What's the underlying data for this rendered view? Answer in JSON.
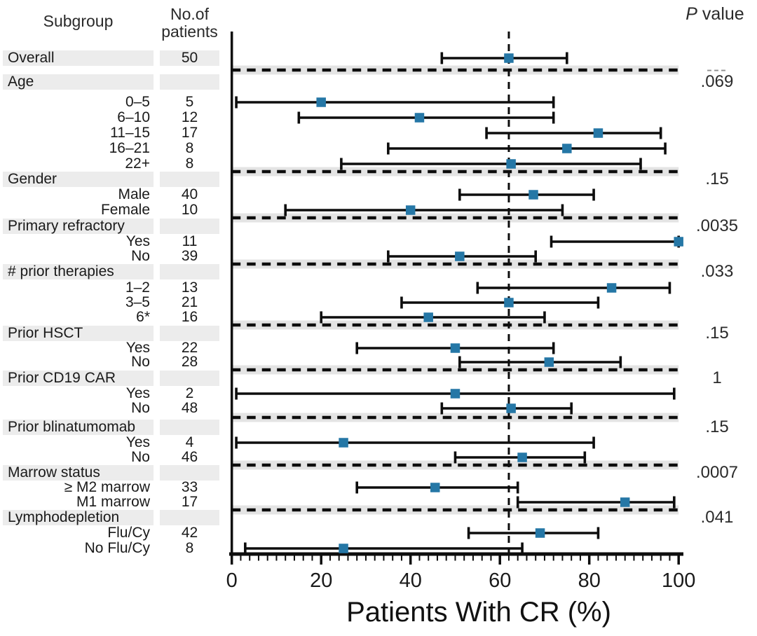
{
  "headers": {
    "subgroup": "Subgroup",
    "patients_line1": "No.of",
    "patients_line2": "patients",
    "pvalue_italic": "P",
    "pvalue_rest": " value"
  },
  "colors": {
    "marker": "#2577a6",
    "category_band": "#ececec",
    "separator_stripe": "#e4e4e4",
    "line": "#0d0d0d",
    "text": "#1a1a1a",
    "pvalue_na": "#8f8f8f"
  },
  "chart_data": {
    "type": "forest",
    "xlabel": "Patients With CR (%)",
    "x_range": [
      0,
      100
    ],
    "major_ticks": [
      0,
      20,
      40,
      60,
      80,
      100
    ],
    "minor_tick_step": 2,
    "reference_value": 62,
    "reference_line_style": "dashed",
    "groups": [
      {
        "label": "Overall",
        "n": 50,
        "p_value": "---",
        "estimate": 62,
        "ci": [
          47,
          75
        ]
      },
      {
        "label": "Age",
        "p_value": ".069",
        "items": [
          {
            "label": "0–5",
            "n": 5,
            "estimate": 20,
            "ci": [
              1,
              72
            ]
          },
          {
            "label": "6–10",
            "n": 12,
            "estimate": 42,
            "ci": [
              15,
              72
            ]
          },
          {
            "label": "11–15",
            "n": 17,
            "estimate": 82,
            "ci": [
              57,
              96
            ]
          },
          {
            "label": "16–21",
            "n": 8,
            "estimate": 75,
            "ci": [
              35,
              97
            ]
          },
          {
            "label": "22+",
            "n": 8,
            "estimate": 62.5,
            "ci": [
              24.5,
              91.5
            ]
          }
        ]
      },
      {
        "label": "Gender",
        "p_value": ".15",
        "items": [
          {
            "label": "Male",
            "n": 40,
            "estimate": 67.5,
            "ci": [
              51,
              81
            ]
          },
          {
            "label": "Female",
            "n": 10,
            "estimate": 40,
            "ci": [
              12,
              74
            ]
          }
        ]
      },
      {
        "label": "Primary refractory",
        "p_value": ".0035",
        "items": [
          {
            "label": "Yes",
            "n": 11,
            "estimate": 100,
            "ci": [
              71.5,
              100
            ]
          },
          {
            "label": "No",
            "n": 39,
            "estimate": 51,
            "ci": [
              35,
              68
            ]
          }
        ]
      },
      {
        "label": "# prior therapies",
        "p_value": ".033",
        "items": [
          {
            "label": "1–2",
            "n": 13,
            "estimate": 85,
            "ci": [
              55,
              98
            ]
          },
          {
            "label": "3–5",
            "n": 21,
            "estimate": 62,
            "ci": [
              38,
              82
            ]
          },
          {
            "label": "6*",
            "n": 16,
            "estimate": 44,
            "ci": [
              20,
              70
            ]
          }
        ]
      },
      {
        "label": "Prior HSCT",
        "p_value": ".15",
        "items": [
          {
            "label": "Yes",
            "n": 22,
            "estimate": 50,
            "ci": [
              28,
              72
            ]
          },
          {
            "label": "No",
            "n": 28,
            "estimate": 71,
            "ci": [
              51,
              87
            ]
          }
        ]
      },
      {
        "label": "Prior CD19 CAR",
        "p_value": "1",
        "items": [
          {
            "label": "Yes",
            "n": 2,
            "estimate": 50,
            "ci": [
              1,
              99
            ]
          },
          {
            "label": "No",
            "n": 48,
            "estimate": 62.5,
            "ci": [
              47,
              76
            ]
          }
        ]
      },
      {
        "label": "Prior blinatumomab",
        "p_value": ".15",
        "items": [
          {
            "label": "Yes",
            "n": 4,
            "estimate": 25,
            "ci": [
              1,
              81
            ]
          },
          {
            "label": "No",
            "n": 46,
            "estimate": 65,
            "ci": [
              50,
              79
            ]
          }
        ]
      },
      {
        "label": "Marrow status",
        "p_value": ".0007",
        "items": [
          {
            "label": "≥ M2 marrow",
            "n": 33,
            "estimate": 45.5,
            "ci": [
              28,
              64
            ]
          },
          {
            "label": "M1 marrow",
            "n": 17,
            "estimate": 88,
            "ci": [
              64,
              99
            ]
          }
        ]
      },
      {
        "label": "Lymphodepletion",
        "p_value": ".041",
        "items": [
          {
            "label": "Flu/Cy",
            "n": 42,
            "estimate": 69,
            "ci": [
              53,
              82
            ]
          },
          {
            "label": "No Flu/Cy",
            "n": 8,
            "estimate": 25,
            "ci": [
              3,
              65
            ]
          }
        ]
      }
    ]
  }
}
